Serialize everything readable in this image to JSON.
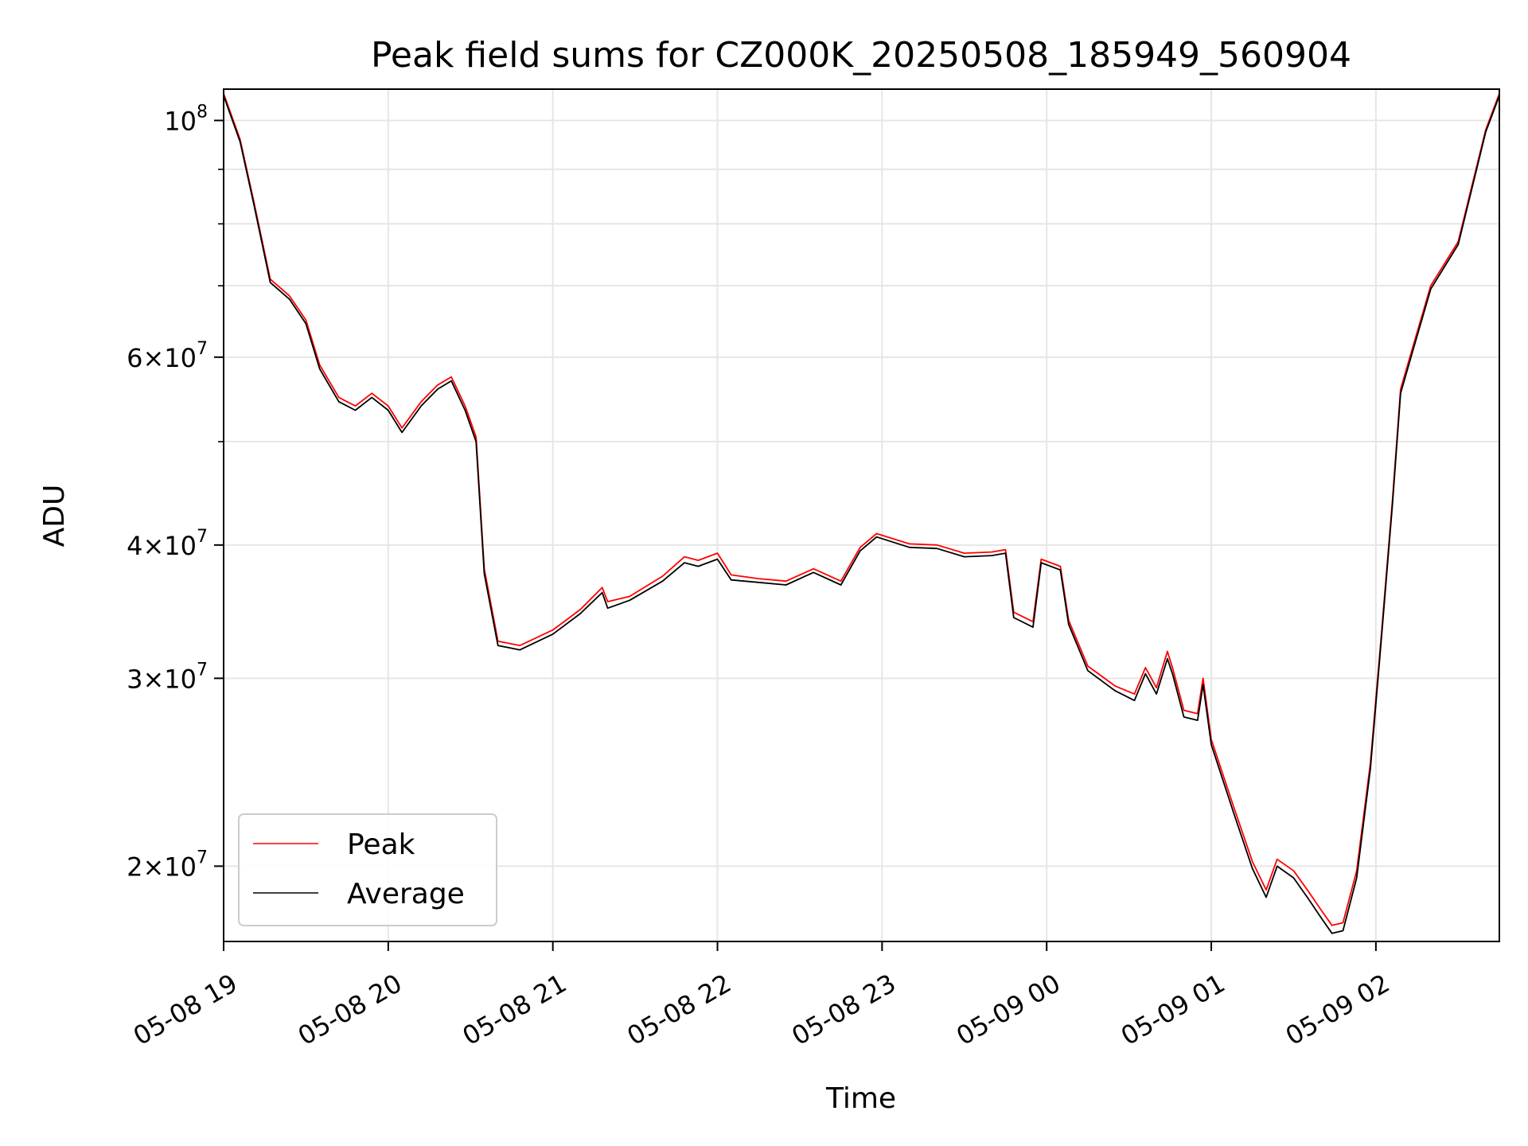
{
  "chart_data": {
    "type": "line",
    "title": "Peak field sums for CZ000K_20250508_185949_560904",
    "xlabel": "Time",
    "ylabel": "ADU",
    "x_scale": "time",
    "y_scale": "log",
    "xlim": [
      "2025-05-08 19:00",
      "2025-05-09 02:45"
    ],
    "ylim": [
      17000000,
      107000000
    ],
    "x_ticks": [
      {
        "at": "2025-05-08 19:00",
        "label": "05-08 19"
      },
      {
        "at": "2025-05-08 20:00",
        "label": "05-08 20"
      },
      {
        "at": "2025-05-08 21:00",
        "label": "05-08 21"
      },
      {
        "at": "2025-05-08 22:00",
        "label": "05-08 22"
      },
      {
        "at": "2025-05-08 23:00",
        "label": "05-08 23"
      },
      {
        "at": "2025-05-09 00:00",
        "label": "05-09 00"
      },
      {
        "at": "2025-05-09 01:00",
        "label": "05-09 01"
      },
      {
        "at": "2025-05-09 02:00",
        "label": "05-09 02"
      }
    ],
    "y_ticks": [
      {
        "value": 20000000,
        "mantissa": "2",
        "base": "10",
        "exp": "7"
      },
      {
        "value": 30000000,
        "mantissa": "3",
        "base": "10",
        "exp": "7"
      },
      {
        "value": 40000000,
        "mantissa": "4",
        "base": "10",
        "exp": "7"
      },
      {
        "value": 60000000,
        "mantissa": "6",
        "base": "10",
        "exp": "7"
      },
      {
        "value": 100000000,
        "mantissa": "",
        "base": "10",
        "exp": "8"
      }
    ],
    "y_minor_gridlines": [
      50000000,
      70000000,
      80000000,
      90000000
    ],
    "grid": true,
    "legend": {
      "position": "lower-left"
    },
    "series": [
      {
        "name": "Peak",
        "color": "#ff0000",
        "points": [
          [
            "2025-05-08 19:00",
            106000000
          ],
          [
            "2025-05-08 19:06",
            96000000
          ],
          [
            "2025-05-08 19:11",
            84000000
          ],
          [
            "2025-05-08 19:17",
            71000000
          ],
          [
            "2025-05-08 19:24",
            68500000
          ],
          [
            "2025-05-08 19:30",
            65000000
          ],
          [
            "2025-05-08 19:35",
            59000000
          ],
          [
            "2025-05-08 19:42",
            55000000
          ],
          [
            "2025-05-08 19:48",
            54000000
          ],
          [
            "2025-05-08 19:54",
            55500000
          ],
          [
            "2025-05-08 20:00",
            54000000
          ],
          [
            "2025-05-08 20:05",
            51500000
          ],
          [
            "2025-05-08 20:12",
            54500000
          ],
          [
            "2025-05-08 20:18",
            56500000
          ],
          [
            "2025-05-08 20:23",
            57500000
          ],
          [
            "2025-05-08 20:28",
            54000000
          ],
          [
            "2025-05-08 20:32",
            50500000
          ],
          [
            "2025-05-08 20:35",
            38000000
          ],
          [
            "2025-05-08 20:40",
            32500000
          ],
          [
            "2025-05-08 20:48",
            32200000
          ],
          [
            "2025-05-08 21:00",
            33300000
          ],
          [
            "2025-05-08 21:10",
            34800000
          ],
          [
            "2025-05-08 21:18",
            36500000
          ],
          [
            "2025-05-08 21:20",
            35400000
          ],
          [
            "2025-05-08 21:28",
            35800000
          ],
          [
            "2025-05-08 21:40",
            37400000
          ],
          [
            "2025-05-08 21:48",
            39000000
          ],
          [
            "2025-05-08 21:53",
            38700000
          ],
          [
            "2025-05-08 22:00",
            39300000
          ],
          [
            "2025-05-08 22:05",
            37500000
          ],
          [
            "2025-05-08 22:15",
            37200000
          ],
          [
            "2025-05-08 22:25",
            37000000
          ],
          [
            "2025-05-08 22:35",
            38000000
          ],
          [
            "2025-05-08 22:45",
            37000000
          ],
          [
            "2025-05-08 22:52",
            39800000
          ],
          [
            "2025-05-08 22:58",
            41000000
          ],
          [
            "2025-05-08 23:10",
            40100000
          ],
          [
            "2025-05-08 23:20",
            40000000
          ],
          [
            "2025-05-08 23:30",
            39300000
          ],
          [
            "2025-05-08 23:40",
            39400000
          ],
          [
            "2025-05-08 23:45",
            39600000
          ],
          [
            "2025-05-08 23:48",
            34600000
          ],
          [
            "2025-05-08 23:55",
            33900000
          ],
          [
            "2025-05-08 23:58",
            38800000
          ],
          [
            "2025-05-09 00:05",
            38200000
          ],
          [
            "2025-05-09 00:08",
            34000000
          ],
          [
            "2025-05-09 00:15",
            30800000
          ],
          [
            "2025-05-09 00:25",
            29500000
          ],
          [
            "2025-05-09 00:32",
            29000000
          ],
          [
            "2025-05-09 00:36",
            30700000
          ],
          [
            "2025-05-09 00:40",
            29400000
          ],
          [
            "2025-05-09 00:44",
            31800000
          ],
          [
            "2025-05-09 00:46",
            30600000
          ],
          [
            "2025-05-09 00:50",
            28000000
          ],
          [
            "2025-05-09 00:55",
            27800000
          ],
          [
            "2025-05-09 00:57",
            30000000
          ],
          [
            "2025-05-09 01:00",
            26300000
          ],
          [
            "2025-05-09 01:08",
            22800000
          ],
          [
            "2025-05-09 01:15",
            20200000
          ],
          [
            "2025-05-09 01:20",
            19000000
          ],
          [
            "2025-05-09 01:24",
            20300000
          ],
          [
            "2025-05-09 01:30",
            19800000
          ],
          [
            "2025-05-09 01:35",
            19000000
          ],
          [
            "2025-05-09 01:40",
            18200000
          ],
          [
            "2025-05-09 01:44",
            17600000
          ],
          [
            "2025-05-09 01:48",
            17700000
          ],
          [
            "2025-05-09 01:53",
            19800000
          ],
          [
            "2025-05-09 01:58",
            25000000
          ],
          [
            "2025-05-09 02:02",
            33000000
          ],
          [
            "2025-05-09 02:06",
            44000000
          ],
          [
            "2025-05-09 02:09",
            56000000
          ],
          [
            "2025-05-09 02:14",
            62000000
          ],
          [
            "2025-05-09 02:20",
            70000000
          ],
          [
            "2025-05-09 02:30",
            77000000
          ],
          [
            "2025-05-09 02:40",
            98000000
          ],
          [
            "2025-05-09 02:45",
            106000000
          ]
        ]
      },
      {
        "name": "Average",
        "color": "#000000",
        "points": [
          [
            "2025-05-08 19:00",
            105500000
          ],
          [
            "2025-05-08 19:06",
            95500000
          ],
          [
            "2025-05-08 19:11",
            83500000
          ],
          [
            "2025-05-08 19:17",
            70500000
          ],
          [
            "2025-05-08 19:24",
            68000000
          ],
          [
            "2025-05-08 19:30",
            64500000
          ],
          [
            "2025-05-08 19:35",
            58500000
          ],
          [
            "2025-05-08 19:42",
            54500000
          ],
          [
            "2025-05-08 19:48",
            53500000
          ],
          [
            "2025-05-08 19:54",
            55000000
          ],
          [
            "2025-05-08 20:00",
            53500000
          ],
          [
            "2025-05-08 20:05",
            51000000
          ],
          [
            "2025-05-08 20:12",
            54000000
          ],
          [
            "2025-05-08 20:18",
            56000000
          ],
          [
            "2025-05-08 20:23",
            57000000
          ],
          [
            "2025-05-08 20:28",
            53500000
          ],
          [
            "2025-05-08 20:32",
            50000000
          ],
          [
            "2025-05-08 20:35",
            37600000
          ],
          [
            "2025-05-08 20:40",
            32200000
          ],
          [
            "2025-05-08 20:48",
            31900000
          ],
          [
            "2025-05-08 21:00",
            33000000
          ],
          [
            "2025-05-08 21:10",
            34500000
          ],
          [
            "2025-05-08 21:18",
            36100000
          ],
          [
            "2025-05-08 21:20",
            34900000
          ],
          [
            "2025-05-08 21:28",
            35500000
          ],
          [
            "2025-05-08 21:40",
            37000000
          ],
          [
            "2025-05-08 21:48",
            38500000
          ],
          [
            "2025-05-08 21:53",
            38200000
          ],
          [
            "2025-05-08 22:00",
            38800000
          ],
          [
            "2025-05-08 22:05",
            37100000
          ],
          [
            "2025-05-08 22:15",
            36900000
          ],
          [
            "2025-05-08 22:25",
            36700000
          ],
          [
            "2025-05-08 22:35",
            37700000
          ],
          [
            "2025-05-08 22:45",
            36700000
          ],
          [
            "2025-05-08 22:52",
            39500000
          ],
          [
            "2025-05-08 22:58",
            40700000
          ],
          [
            "2025-05-08 23:10",
            39800000
          ],
          [
            "2025-05-08 23:20",
            39700000
          ],
          [
            "2025-05-08 23:30",
            39000000
          ],
          [
            "2025-05-08 23:40",
            39100000
          ],
          [
            "2025-05-08 23:45",
            39300000
          ],
          [
            "2025-05-08 23:48",
            34200000
          ],
          [
            "2025-05-08 23:55",
            33500000
          ],
          [
            "2025-05-08 23:58",
            38500000
          ],
          [
            "2025-05-09 00:05",
            37900000
          ],
          [
            "2025-05-09 00:08",
            33700000
          ],
          [
            "2025-05-09 00:15",
            30500000
          ],
          [
            "2025-05-09 00:25",
            29200000
          ],
          [
            "2025-05-09 00:32",
            28600000
          ],
          [
            "2025-05-09 00:36",
            30300000
          ],
          [
            "2025-05-09 00:40",
            29000000
          ],
          [
            "2025-05-09 00:44",
            31300000
          ],
          [
            "2025-05-09 00:46",
            30200000
          ],
          [
            "2025-05-09 00:50",
            27600000
          ],
          [
            "2025-05-09 00:55",
            27400000
          ],
          [
            "2025-05-09 00:57",
            29600000
          ],
          [
            "2025-05-09 01:00",
            26000000
          ],
          [
            "2025-05-09 01:08",
            22500000
          ],
          [
            "2025-05-09 01:15",
            19900000
          ],
          [
            "2025-05-09 01:20",
            18700000
          ],
          [
            "2025-05-09 01:24",
            20000000
          ],
          [
            "2025-05-09 01:30",
            19500000
          ],
          [
            "2025-05-09 01:35",
            18700000
          ],
          [
            "2025-05-09 01:40",
            17900000
          ],
          [
            "2025-05-09 01:44",
            17300000
          ],
          [
            "2025-05-09 01:48",
            17400000
          ],
          [
            "2025-05-09 01:53",
            19500000
          ],
          [
            "2025-05-09 01:58",
            24700000
          ],
          [
            "2025-05-09 02:02",
            32700000
          ],
          [
            "2025-05-09 02:06",
            43600000
          ],
          [
            "2025-05-09 02:09",
            55500000
          ],
          [
            "2025-05-09 02:14",
            61500000
          ],
          [
            "2025-05-09 02:20",
            69500000
          ],
          [
            "2025-05-09 02:30",
            76500000
          ],
          [
            "2025-05-09 02:40",
            97500000
          ],
          [
            "2025-05-09 02:45",
            105500000
          ]
        ]
      }
    ]
  }
}
